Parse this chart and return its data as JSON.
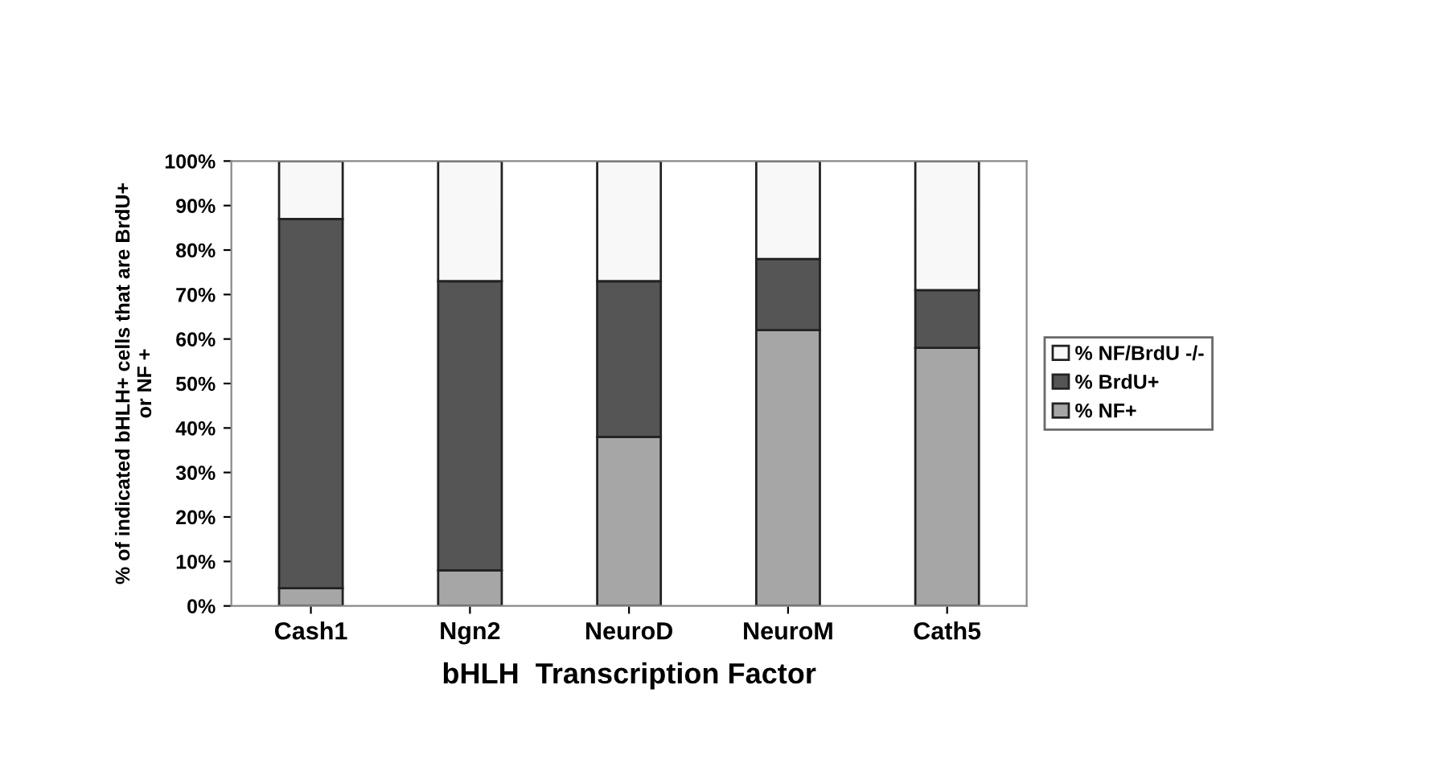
{
  "chart_data": {
    "type": "bar",
    "stacked": true,
    "xlabel": "bHLH  Transcription Factor",
    "ylabel": "% of indicated bHLH+ cells that are BrdU+\nor NF +",
    "categories": [
      "Cash1",
      "Ngn2",
      "NeuroD",
      "NeuroM",
      "Cath5"
    ],
    "series": [
      {
        "name": "% NF+",
        "color": "#a6a6a6",
        "values": [
          4,
          8,
          38,
          62,
          58
        ]
      },
      {
        "name": "% BrdU+",
        "color": "#555555",
        "values": [
          83,
          65,
          35,
          16,
          13
        ]
      },
      {
        "name": "% NF/BrdU -/-",
        "color": "#f8f8f8",
        "values": [
          13,
          27,
          27,
          22,
          29
        ]
      }
    ],
    "ylim": [
      0,
      100
    ],
    "yticks": [
      {
        "value": 0,
        "label": "0%"
      },
      {
        "value": 10,
        "label": "10%"
      },
      {
        "value": 20,
        "label": "20%"
      },
      {
        "value": 30,
        "label": "30%"
      },
      {
        "value": 40,
        "label": "40%"
      },
      {
        "value": 50,
        "label": "50%"
      },
      {
        "value": 60,
        "label": "60%"
      },
      {
        "value": 70,
        "label": "70%"
      },
      {
        "value": 80,
        "label": "80%"
      },
      {
        "value": 90,
        "label": "90%"
      },
      {
        "value": 100,
        "label": "100%"
      }
    ],
    "legend": "right"
  }
}
